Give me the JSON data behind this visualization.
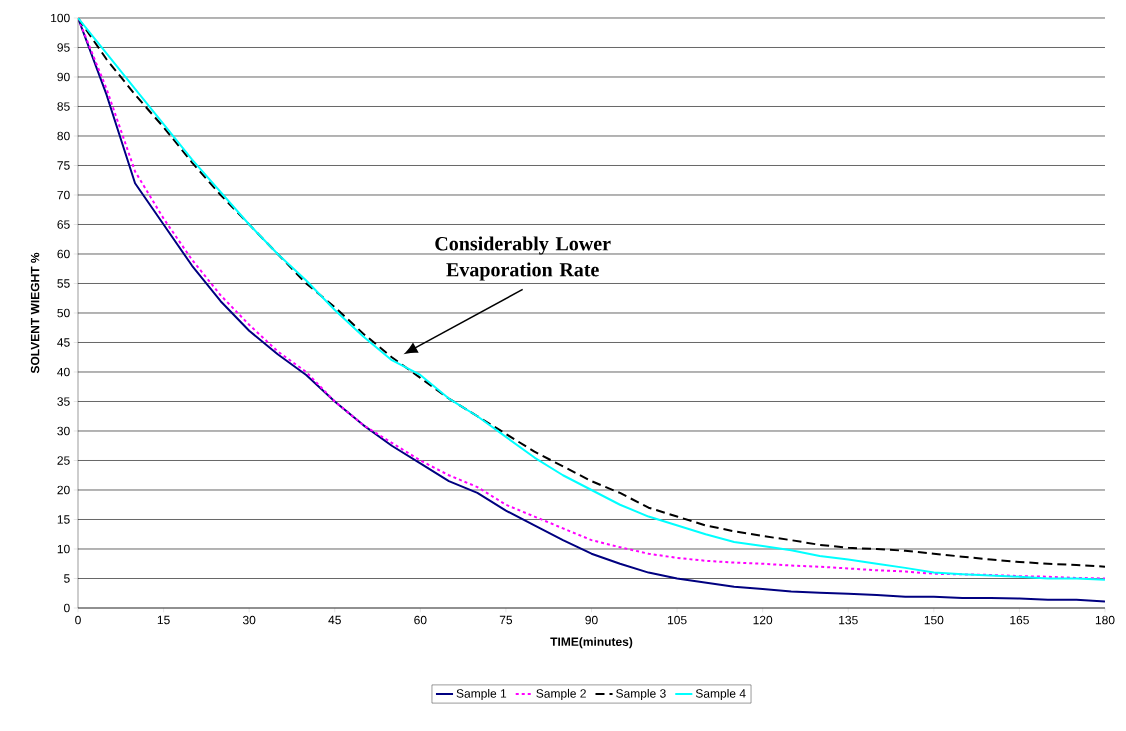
{
  "chart_data": {
    "type": "line",
    "xlabel": "TIME(minutes)",
    "ylabel": "SOLVENT WIEGHT %",
    "x": [
      0,
      5,
      10,
      15,
      20,
      25,
      30,
      35,
      40,
      45,
      50,
      55,
      60,
      65,
      70,
      75,
      80,
      85,
      90,
      95,
      100,
      105,
      110,
      115,
      120,
      125,
      130,
      135,
      140,
      145,
      150,
      155,
      160,
      165,
      170,
      175,
      180
    ],
    "series": [
      {
        "name": "Sample 1",
        "color": "#000080",
        "line_style": "solid",
        "values": [
          100,
          87,
          72,
          65,
          58,
          52,
          47,
          43,
          39.5,
          35,
          31,
          27.5,
          24.5,
          21.5,
          19.5,
          16.5,
          14,
          11.5,
          9.2,
          7.5,
          6,
          5,
          4.3,
          3.6,
          3.2,
          2.8,
          2.6,
          2.4,
          2.2,
          1.9,
          1.9,
          1.7,
          1.7,
          1.6,
          1.4,
          1.4,
          1.1
        ]
      },
      {
        "name": "Sample 2",
        "color": "#ff00ff",
        "line_style": "dotted",
        "values": [
          100,
          88,
          74,
          66,
          59,
          53,
          48,
          43.5,
          40,
          35,
          31,
          28,
          25,
          22.5,
          20.5,
          17.5,
          15.5,
          13.5,
          11.5,
          10.3,
          9.2,
          8.5,
          8,
          7.7,
          7.5,
          7.2,
          7,
          6.7,
          6.4,
          6.2,
          5.8,
          5.7,
          5.6,
          5.4,
          5.3,
          5.1,
          5
        ]
      },
      {
        "name": "Sample 3",
        "color": "#000000",
        "line_style": "dashed",
        "values": [
          100,
          93,
          87,
          81.5,
          75.5,
          70,
          65,
          60,
          55,
          51,
          46.5,
          42.5,
          39,
          35.5,
          32.5,
          29.5,
          26.5,
          24,
          21.5,
          19.5,
          17,
          15.5,
          14,
          13,
          12.2,
          11.5,
          10.7,
          10.2,
          10,
          9.7,
          9.2,
          8.7,
          8.2,
          7.8,
          7.5,
          7.3,
          7
        ]
      },
      {
        "name": "Sample 4",
        "color": "#00ffff",
        "line_style": "solid",
        "values": [
          100,
          94,
          88,
          82,
          76,
          70.5,
          65,
          60,
          55.5,
          50.5,
          46,
          42,
          39.5,
          35.5,
          32.5,
          29,
          25.5,
          22.5,
          20,
          17.5,
          15.5,
          14,
          12.5,
          11.2,
          10.5,
          9.8,
          8.8,
          8.2,
          7.5,
          6.8,
          6,
          5.7,
          5.5,
          5.3,
          5,
          5,
          4.8
        ]
      }
    ],
    "xlim": [
      0,
      180
    ],
    "ylim": [
      0,
      100
    ],
    "xticks": [
      0,
      15,
      30,
      45,
      60,
      75,
      90,
      105,
      120,
      135,
      150,
      165,
      180
    ],
    "yticks": [
      0,
      5,
      10,
      15,
      20,
      25,
      30,
      35,
      40,
      45,
      50,
      55,
      60,
      65,
      70,
      75,
      80,
      85,
      90,
      95,
      100
    ],
    "grid": "y",
    "legend": "bottom",
    "marker": "none",
    "annotations": [
      "Considerably Lower Evaporation Rate"
    ]
  }
}
